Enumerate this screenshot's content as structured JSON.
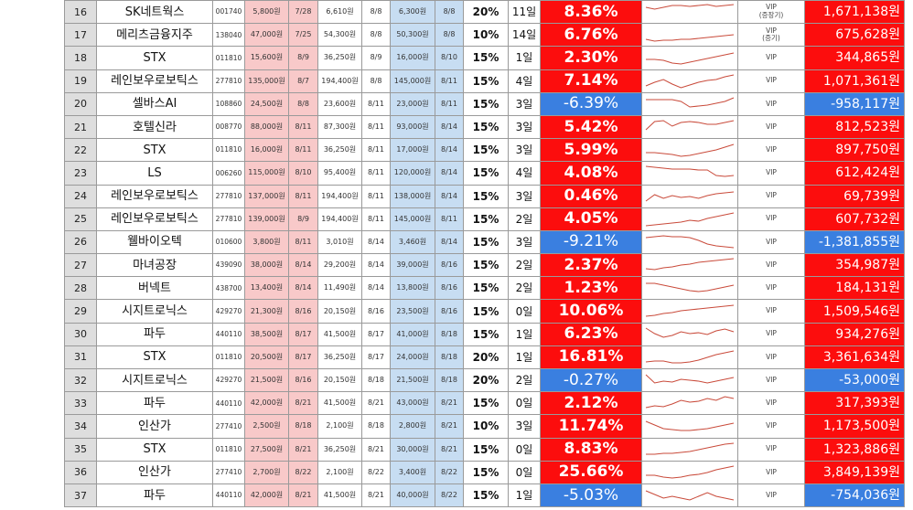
{
  "colors": {
    "positive": "#fc0d0d",
    "negative": "#3a7fe0",
    "buy": "#f8c9c9",
    "target": "#c7ddf2",
    "spark": "#c94a3a"
  },
  "rows": [
    {
      "no": "16",
      "name": "SK네트웍스",
      "code": "001740",
      "buy": "5,800원",
      "buy_date": "7/28",
      "cur": "6,610원",
      "cur_date": "8/8",
      "tgt": "6,300원",
      "tgt_date": "8/8",
      "pct": "20%",
      "days": "11일",
      "ret": "8.36%",
      "ret_sign": "pos",
      "spark": [
        6,
        8,
        6,
        4,
        4,
        5,
        4,
        3,
        5,
        4,
        3
      ],
      "grade": [
        "VIP",
        "(증장기)"
      ],
      "profit": "1,671,138원"
    },
    {
      "no": "17",
      "name": "메리츠금융지주",
      "code": "138040",
      "buy": "47,000원",
      "buy_date": "7/25",
      "cur": "54,300원",
      "cur_date": "8/8",
      "tgt": "50,300원",
      "tgt_date": "8/8",
      "pct": "10%",
      "days": "14일",
      "ret": "6.76%",
      "ret_sign": "pos",
      "spark": [
        16,
        18,
        17,
        17,
        16,
        16,
        15,
        14,
        13,
        12,
        11
      ],
      "grade": [
        "VIP",
        "(증기)"
      ],
      "profit": "675,628원"
    },
    {
      "no": "18",
      "name": "STX",
      "code": "011810",
      "buy": "15,600원",
      "buy_date": "8/9",
      "cur": "36,250원",
      "cur_date": "8/9",
      "tgt": "16,000원",
      "tgt_date": "8/10",
      "pct": "15%",
      "days": "1일",
      "ret": "2.30%",
      "ret_sign": "pos",
      "spark": [
        13,
        13,
        14,
        17,
        18,
        16,
        14,
        12,
        10,
        8,
        6
      ],
      "grade": [
        "VIP"
      ],
      "profit": "344,865원"
    },
    {
      "no": "19",
      "name": "레인보우로보틱스",
      "code": "277810",
      "buy": "135,000원",
      "buy_date": "8/7",
      "cur": "194,400원",
      "cur_date": "8/8",
      "tgt": "145,000원",
      "tgt_date": "8/11",
      "pct": "15%",
      "days": "4일",
      "ret": "7.14%",
      "ret_sign": "pos",
      "spark": [
        16,
        12,
        9,
        14,
        18,
        15,
        12,
        10,
        9,
        6,
        4
      ],
      "grade": [
        "VIP"
      ],
      "profit": "1,071,361원"
    },
    {
      "no": "20",
      "name": "셀바스AI",
      "code": "108860",
      "buy": "24,500원",
      "buy_date": "8/8",
      "cur": "23,600원",
      "cur_date": "8/11",
      "tgt": "23,000원",
      "tgt_date": "8/11",
      "pct": "15%",
      "days": "3일",
      "ret": "-6.39%",
      "ret_sign": "neg",
      "spark": [
        6,
        6,
        6,
        6,
        8,
        14,
        13,
        12,
        10,
        8,
        4
      ],
      "grade": [
        "VIP"
      ],
      "profit": "-958,117원"
    },
    {
      "no": "21",
      "name": "호텔신라",
      "code": "008770",
      "buy": "88,000원",
      "buy_date": "8/11",
      "cur": "87,300원",
      "cur_date": "8/11",
      "tgt": "93,000원",
      "tgt_date": "8/14",
      "pct": "15%",
      "days": "3일",
      "ret": "5.42%",
      "ret_sign": "pos",
      "spark": [
        14,
        5,
        4,
        10,
        6,
        5,
        6,
        8,
        8,
        6,
        4
      ],
      "grade": [
        "VIP"
      ],
      "profit": "812,523원"
    },
    {
      "no": "22",
      "name": "STX",
      "code": "011810",
      "buy": "16,000원",
      "buy_date": "8/11",
      "cur": "36,250원",
      "cur_date": "8/11",
      "tgt": "17,000원",
      "tgt_date": "8/14",
      "pct": "15%",
      "days": "3일",
      "ret": "5.99%",
      "ret_sign": "pos",
      "spark": [
        14,
        14,
        15,
        16,
        18,
        17,
        15,
        13,
        11,
        8,
        5
      ],
      "grade": [
        "VIP"
      ],
      "profit": "897,750원"
    },
    {
      "no": "23",
      "name": "LS",
      "code": "006260",
      "buy": "115,000원",
      "buy_date": "8/10",
      "cur": "95,400원",
      "cur_date": "8/11",
      "tgt": "120,000원",
      "tgt_date": "8/14",
      "pct": "15%",
      "days": "4일",
      "ret": "4.08%",
      "ret_sign": "pos",
      "spark": [
        4,
        5,
        6,
        7,
        7,
        7,
        8,
        8,
        14,
        15,
        14
      ],
      "grade": [
        "VIP"
      ],
      "profit": "612,424원"
    },
    {
      "no": "24",
      "name": "레인보우로보틱스",
      "code": "277810",
      "buy": "137,000원",
      "buy_date": "8/11",
      "cur": "194,400원",
      "cur_date": "8/11",
      "tgt": "138,000원",
      "tgt_date": "8/14",
      "pct": "15%",
      "days": "3일",
      "ret": "0.46%",
      "ret_sign": "pos",
      "spark": [
        16,
        9,
        13,
        10,
        12,
        11,
        13,
        10,
        8,
        7,
        6
      ],
      "grade": [
        "VIP"
      ],
      "profit": "69,739원"
    },
    {
      "no": "25",
      "name": "레인보우로보틱스",
      "code": "277810",
      "buy": "139,000원",
      "buy_date": "8/9",
      "cur": "194,400원",
      "cur_date": "8/11",
      "tgt": "145,000원",
      "tgt_date": "8/11",
      "pct": "15%",
      "days": "2일",
      "ret": "4.05%",
      "ret_sign": "pos",
      "spark": [
        18,
        17,
        16,
        15,
        14,
        12,
        13,
        10,
        8,
        6,
        4
      ],
      "grade": [
        "VIP"
      ],
      "profit": "607,732원"
    },
    {
      "no": "26",
      "name": "웰바이오텍",
      "code": "010600",
      "buy": "3,800원",
      "buy_date": "8/11",
      "cur": "3,010원",
      "cur_date": "8/14",
      "tgt": "3,460원",
      "tgt_date": "8/14",
      "pct": "15%",
      "days": "3일",
      "ret": "-9.21%",
      "ret_sign": "neg",
      "spark": [
        6,
        5,
        4,
        5,
        5,
        6,
        9,
        13,
        15,
        16,
        17
      ],
      "grade": [
        "VIP"
      ],
      "profit": "-1,381,855원"
    },
    {
      "no": "27",
      "name": "마녀공장",
      "code": "439090",
      "buy": "38,000원",
      "buy_date": "8/14",
      "cur": "29,200원",
      "cur_date": "8/14",
      "tgt": "39,000원",
      "tgt_date": "8/16",
      "pct": "15%",
      "days": "2일",
      "ret": "2.37%",
      "ret_sign": "pos",
      "spark": [
        15,
        16,
        14,
        13,
        11,
        10,
        8,
        7,
        6,
        5,
        4
      ],
      "grade": [
        "VIP"
      ],
      "profit": "354,987원"
    },
    {
      "no": "28",
      "name": "버넥트",
      "code": "438700",
      "buy": "13,400원",
      "buy_date": "8/14",
      "cur": "11,490원",
      "cur_date": "8/14",
      "tgt": "13,800원",
      "tgt_date": "8/16",
      "pct": "15%",
      "days": "2일",
      "ret": "1.23%",
      "ret_sign": "pos",
      "spark": [
        6,
        6,
        8,
        10,
        12,
        14,
        15,
        14,
        12,
        10,
        8
      ],
      "grade": [
        "VIP"
      ],
      "profit": "184,131원"
    },
    {
      "no": "29",
      "name": "시지트로닉스",
      "code": "429270",
      "buy": "21,300원",
      "buy_date": "8/16",
      "cur": "20,150원",
      "cur_date": "8/16",
      "tgt": "23,500원",
      "tgt_date": "8/16",
      "pct": "15%",
      "days": "0일",
      "ret": "10.06%",
      "ret_sign": "pos",
      "spark": [
        16,
        15,
        13,
        12,
        10,
        9,
        8,
        7,
        6,
        5,
        4
      ],
      "grade": [
        "VIP"
      ],
      "profit": "1,509,546원"
    },
    {
      "no": "30",
      "name": "파두",
      "code": "440110",
      "buy": "38,500원",
      "buy_date": "8/17",
      "cur": "41,500원",
      "cur_date": "8/17",
      "tgt": "41,000원",
      "tgt_date": "8/18",
      "pct": "15%",
      "days": "1일",
      "ret": "6.23%",
      "ret_sign": "pos",
      "spark": [
        4,
        10,
        14,
        12,
        8,
        10,
        9,
        11,
        7,
        5,
        8
      ],
      "grade": [
        "VIP"
      ],
      "profit": "934,276원"
    },
    {
      "no": "31",
      "name": "STX",
      "code": "011810",
      "buy": "20,500원",
      "buy_date": "8/17",
      "cur": "36,250원",
      "cur_date": "8/17",
      "tgt": "24,000원",
      "tgt_date": "8/18",
      "pct": "20%",
      "days": "1일",
      "ret": "16.81%",
      "ret_sign": "pos",
      "spark": [
        16,
        15,
        15,
        17,
        17,
        16,
        14,
        11,
        8,
        6,
        4
      ],
      "grade": [
        "VIP"
      ],
      "profit": "3,361,634원"
    },
    {
      "no": "32",
      "name": "시지트로닉스",
      "code": "429270",
      "buy": "21,500원",
      "buy_date": "8/16",
      "cur": "20,150원",
      "cur_date": "8/18",
      "tgt": "21,500원",
      "tgt_date": "8/18",
      "pct": "20%",
      "days": "2일",
      "ret": "-0.27%",
      "ret_sign": "neg",
      "spark": [
        5,
        14,
        12,
        13,
        10,
        11,
        12,
        14,
        12,
        10,
        8
      ],
      "grade": [
        "VIP"
      ],
      "profit": "-53,000원"
    },
    {
      "no": "33",
      "name": "파두",
      "code": "440110",
      "buy": "42,000원",
      "buy_date": "8/21",
      "cur": "41,500원",
      "cur_date": "8/21",
      "tgt": "43,000원",
      "tgt_date": "8/21",
      "pct": "15%",
      "days": "0일",
      "ret": "2.12%",
      "ret_sign": "pos",
      "spark": [
        16,
        14,
        15,
        12,
        8,
        10,
        9,
        6,
        8,
        4,
        6
      ],
      "grade": [
        "VIP"
      ],
      "profit": "317,393원"
    },
    {
      "no": "34",
      "name": "인산가",
      "code": "277410",
      "buy": "2,500원",
      "buy_date": "8/18",
      "cur": "2,100원",
      "cur_date": "8/18",
      "tgt": "2,800원",
      "tgt_date": "8/21",
      "pct": "10%",
      "days": "3일",
      "ret": "11.74%",
      "ret_sign": "pos",
      "spark": [
        6,
        10,
        14,
        15,
        16,
        16,
        15,
        14,
        12,
        10,
        8
      ],
      "grade": [
        "VIP"
      ],
      "profit": "1,173,500원"
    },
    {
      "no": "35",
      "name": "STX",
      "code": "011810",
      "buy": "27,500원",
      "buy_date": "8/21",
      "cur": "36,250원",
      "cur_date": "8/21",
      "tgt": "30,000원",
      "tgt_date": "8/21",
      "pct": "15%",
      "days": "0일",
      "ret": "8.83%",
      "ret_sign": "pos",
      "spark": [
        16,
        16,
        15,
        15,
        14,
        13,
        11,
        9,
        7,
        5,
        4
      ],
      "grade": [
        "VIP"
      ],
      "profit": "1,323,886원"
    },
    {
      "no": "36",
      "name": "인산가",
      "code": "277410",
      "buy": "2,700원",
      "buy_date": "8/22",
      "cur": "2,100원",
      "cur_date": "8/22",
      "tgt": "3,400원",
      "tgt_date": "8/22",
      "pct": "15%",
      "days": "0일",
      "ret": "25.66%",
      "ret_sign": "pos",
      "spark": [
        14,
        14,
        16,
        17,
        16,
        14,
        13,
        11,
        8,
        6,
        4
      ],
      "grade": [
        "VIP"
      ],
      "profit": "3,849,139원"
    },
    {
      "no": "37",
      "name": "파두",
      "code": "440110",
      "buy": "42,000원",
      "buy_date": "8/21",
      "cur": "41,500원",
      "cur_date": "8/21",
      "tgt": "40,000원",
      "tgt_date": "8/22",
      "pct": "15%",
      "days": "1일",
      "ret": "-5.03%",
      "ret_sign": "neg",
      "spark": [
        6,
        10,
        14,
        12,
        14,
        16,
        12,
        8,
        12,
        14,
        16
      ],
      "grade": [
        "VIP"
      ],
      "profit": "-754,036원"
    }
  ]
}
